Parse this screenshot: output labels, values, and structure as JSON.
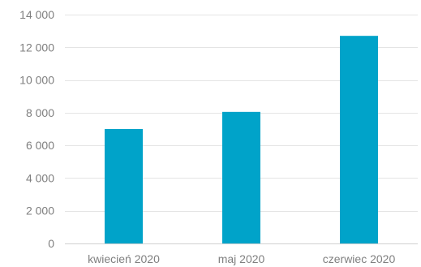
{
  "chart_data": {
    "type": "bar",
    "title": "",
    "xlabel": "",
    "ylabel": "",
    "categories": [
      "kwiecień 2020",
      "maj 2020",
      "czerwiec 2020"
    ],
    "values": [
      7000,
      8050,
      12700
    ],
    "ylim": [
      0,
      14000
    ],
    "y_ticks": [
      0,
      2000,
      4000,
      6000,
      8000,
      10000,
      12000,
      14000
    ],
    "y_tick_labels": [
      "0",
      "2 000",
      "4 000",
      "6 000",
      "8 000",
      "10 000",
      "12 000",
      "14 000"
    ],
    "grid": true,
    "legend": "none",
    "bar_color": "#00a3c9"
  }
}
